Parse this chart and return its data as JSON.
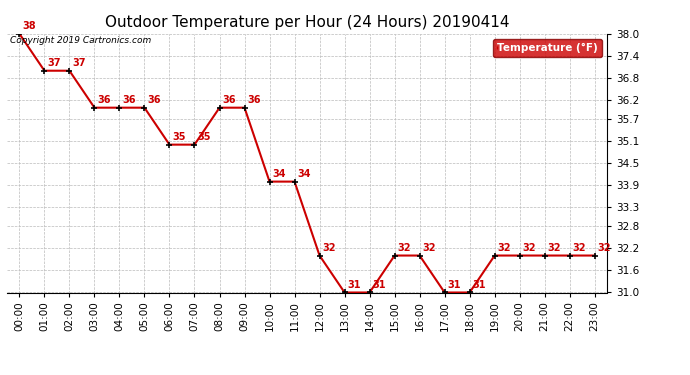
{
  "title": "Outdoor Temperature per Hour (24 Hours) 20190414",
  "copyright": "Copyright 2019 Cartronics.com",
  "legend_label": "Temperature (°F)",
  "hours": [
    "00:00",
    "01:00",
    "02:00",
    "03:00",
    "04:00",
    "05:00",
    "06:00",
    "07:00",
    "08:00",
    "09:00",
    "10:00",
    "11:00",
    "12:00",
    "13:00",
    "14:00",
    "15:00",
    "16:00",
    "17:00",
    "18:00",
    "19:00",
    "20:00",
    "21:00",
    "22:00",
    "23:00"
  ],
  "temps": [
    38,
    37,
    37,
    36,
    36,
    36,
    35,
    35,
    36,
    36,
    34,
    34,
    32,
    31,
    31,
    32,
    32,
    31,
    31,
    32,
    32,
    32,
    32,
    32
  ],
  "ylim_min": 31.0,
  "ylim_max": 38.0,
  "yticks": [
    31.0,
    31.6,
    32.2,
    32.8,
    33.3,
    33.9,
    34.5,
    35.1,
    35.7,
    36.2,
    36.8,
    37.4,
    38.0
  ],
  "line_color": "#cc0000",
  "marker_color": "#000000",
  "label_color": "#cc0000",
  "bg_color": "#ffffff",
  "grid_color": "#bbbbbb",
  "legend_bg": "#cc0000",
  "legend_text_color": "#ffffff",
  "title_fontsize": 11,
  "label_fontsize": 7,
  "copyright_fontsize": 6.5,
  "tick_fontsize": 7.5
}
